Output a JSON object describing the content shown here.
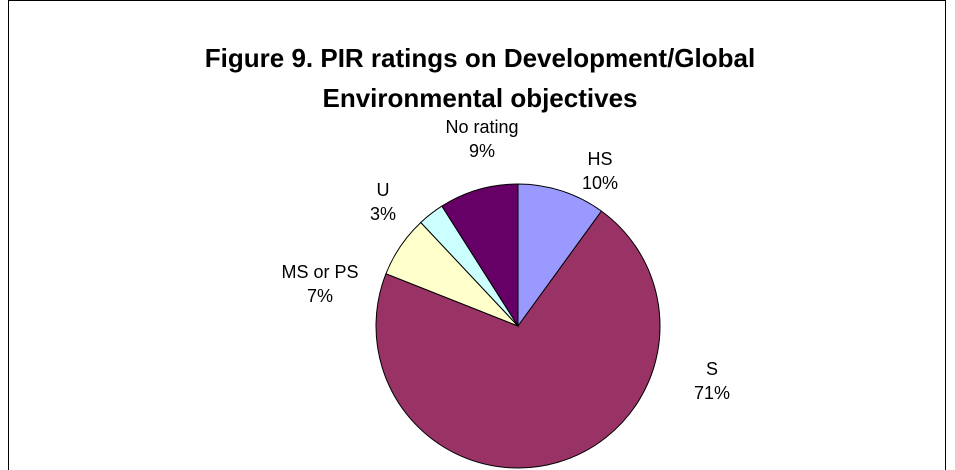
{
  "chart_data": {
    "type": "pie",
    "title": "Figure 9. PIR ratings on Development/Global Environmental objectives",
    "categories": [
      "HS",
      "S",
      "MS or PS",
      "U",
      "No rating"
    ],
    "values": [
      10,
      71,
      7,
      3,
      9
    ],
    "value_labels": [
      "10%",
      "71%",
      "7%",
      "3%",
      "9%"
    ],
    "colors": [
      "#9999ff",
      "#993366",
      "#ffffcc",
      "#ccffff",
      "#660066"
    ]
  }
}
